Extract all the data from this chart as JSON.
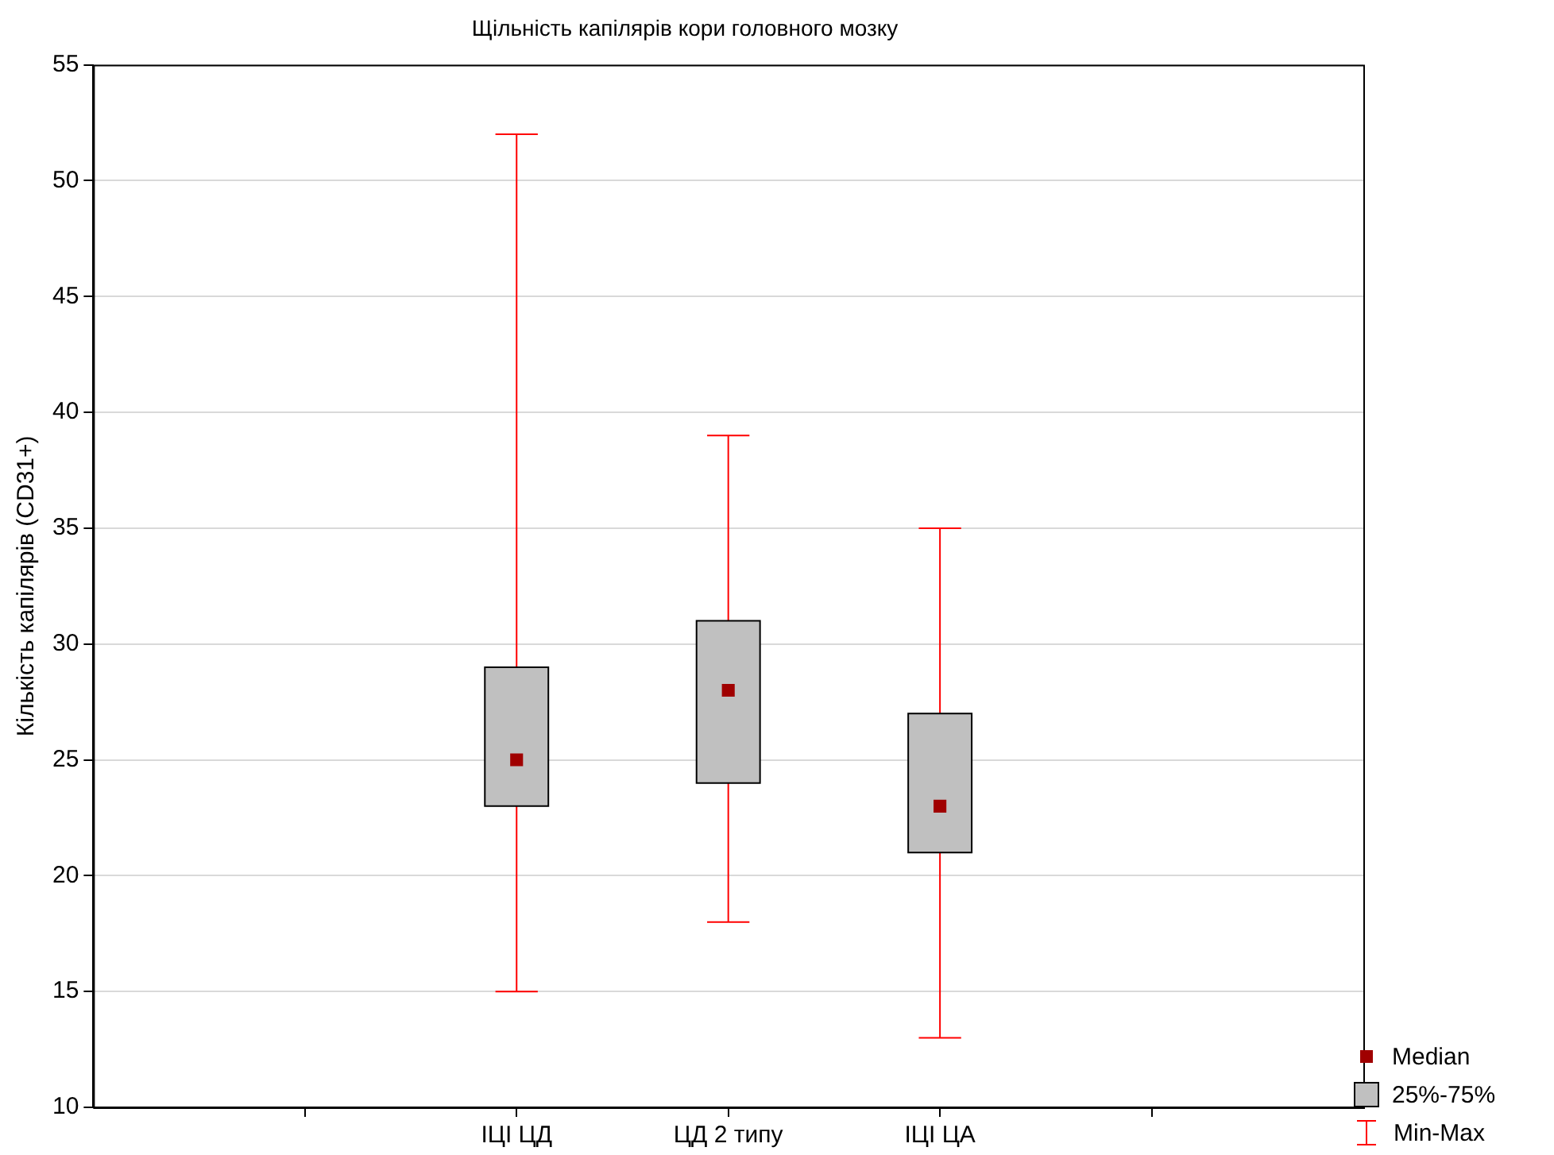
{
  "chart_data": {
    "type": "box",
    "title": "Щільність капілярів кори головного мозку",
    "ylabel": "Кількість капілярів (CD31+)",
    "categories": [
      null,
      "ІЦІ ЦД",
      "ЦД 2 типу",
      "ІЦІ ЦА",
      null
    ],
    "series": [
      {
        "color": "#c0c0c0",
        "boxes": [
          null,
          {
            "low": 15,
            "q1": 23,
            "median": 25,
            "q3": 29,
            "high": 52
          },
          {
            "low": 18,
            "q1": 24,
            "median": 28,
            "q3": 31,
            "high": 39
          },
          {
            "low": 13,
            "q1": 21,
            "median": 23,
            "q3": 27,
            "high": 35
          },
          null
        ]
      }
    ],
    "ylim": [
      10,
      55
    ],
    "yticks": [
      10,
      15,
      20,
      25,
      30,
      35,
      40,
      45,
      50,
      55
    ],
    "grid": "y",
    "marker": "square",
    "annotations": [
      "Median",
      "25%-75%",
      "Min-Max"
    ]
  }
}
